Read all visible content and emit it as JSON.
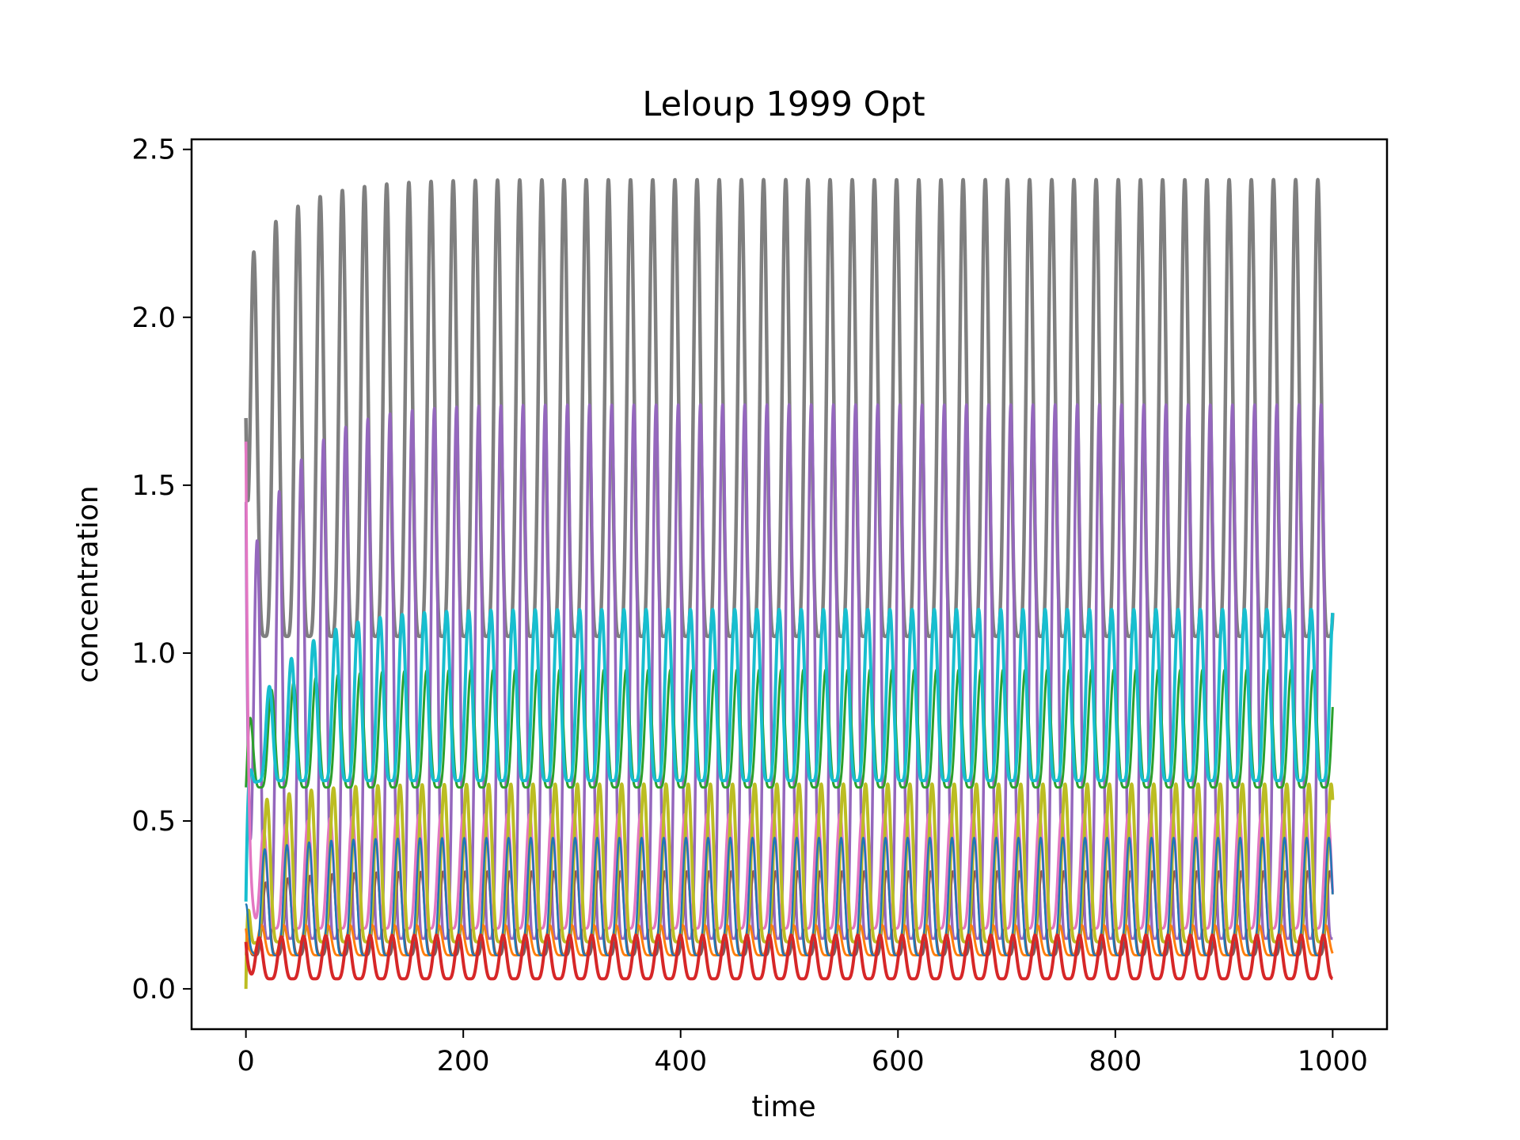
{
  "chart_data": {
    "type": "line",
    "title": "Leloup 1999 Opt",
    "xlabel": "time",
    "ylabel": "concentration",
    "xlim": [
      -50,
      1050
    ],
    "ylim": [
      -0.12,
      2.53
    ],
    "x_ticks": [
      0,
      200,
      400,
      600,
      800,
      1000
    ],
    "x_tick_labels": [
      "0",
      "200",
      "400",
      "600",
      "800",
      "1000"
    ],
    "y_ticks": [
      0.0,
      0.5,
      1.0,
      1.5,
      2.0,
      2.5
    ],
    "y_tick_labels": [
      "0.0",
      "0.5",
      "1.0",
      "1.5",
      "2.0",
      "2.5"
    ],
    "grid": false,
    "legend": "none",
    "x_range": [
      0,
      1000
    ],
    "period": 20.4,
    "series": [
      {
        "color": "#7f7f7f",
        "initial": 1.7,
        "min": 1.05,
        "max": 2.41,
        "phase": 0.15,
        "stroke": 4.5,
        "first_peak": 2.18
      },
      {
        "color": "#9467bd",
        "initial": 1.45,
        "min": 0.15,
        "max": 1.74,
        "phase": 0.0,
        "stroke": 3.5,
        "first_peak": 1.23
      },
      {
        "color": "#2ca02c",
        "initial": 0.6,
        "min": 0.6,
        "max": 0.95,
        "phase": 0.35,
        "stroke": 3.0,
        "first_peak": 0.85
      },
      {
        "color": "#17becf",
        "initial": 0.26,
        "min": 0.62,
        "max": 1.13,
        "phase": 0.45,
        "stroke": 4.0,
        "first_peak": 0.76
      },
      {
        "color": "#8c564b",
        "initial": 0.1,
        "min": 0.1,
        "max": 0.35,
        "phase": 0.6,
        "stroke": 3.0,
        "first_peak": 0.3
      },
      {
        "color": "#e377c2",
        "initial": 1.63,
        "min": 0.18,
        "max": 0.52,
        "phase": 0.7,
        "stroke": 3.5,
        "first_peak": 0.45
      },
      {
        "color": "#bcbd22",
        "initial": 0.0,
        "min": 0.14,
        "max": 0.61,
        "phase": 0.55,
        "stroke": 4.0,
        "first_peak": 0.54
      },
      {
        "color": "#ff7f0e",
        "initial": 0.18,
        "min": 0.1,
        "max": 0.19,
        "phase": 0.8,
        "stroke": 3.0,
        "first_peak": 0.19
      },
      {
        "color": "#1f77b4",
        "initial": 0.25,
        "min": 0.1,
        "max": 0.45,
        "phase": 0.65,
        "stroke": 2.5,
        "first_peak": 0.4
      },
      {
        "color": "#d62728",
        "initial": 0.14,
        "min": 0.03,
        "max": 0.16,
        "phase": 0.9,
        "stroke": 4.0,
        "first_peak": 0.15
      }
    ]
  }
}
